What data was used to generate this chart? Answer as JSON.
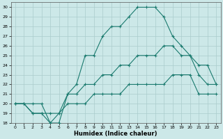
{
  "xlabel": "Humidex (Indice chaleur)",
  "bg_color": "#cce8e8",
  "line_color": "#1a7a6e",
  "grid_color": "#aacccc",
  "xlim": [
    -0.5,
    23.5
  ],
  "ylim": [
    18,
    30.5
  ],
  "yticks": [
    18,
    19,
    20,
    21,
    22,
    23,
    24,
    25,
    26,
    27,
    28,
    29,
    30
  ],
  "xticks": [
    0,
    1,
    2,
    3,
    4,
    5,
    6,
    7,
    8,
    9,
    10,
    11,
    12,
    13,
    14,
    15,
    16,
    17,
    18,
    19,
    20,
    21,
    22,
    23
  ],
  "line1_x": [
    0,
    1,
    2,
    3,
    4,
    5,
    6,
    7,
    8,
    9,
    10,
    11,
    12,
    13,
    14,
    15,
    16,
    17,
    18,
    19,
    20,
    21,
    22,
    23
  ],
  "line1_y": [
    20,
    20,
    19,
    19,
    19,
    19,
    20,
    20,
    20,
    21,
    21,
    21,
    21,
    22,
    22,
    22,
    22,
    22,
    23,
    23,
    23,
    21,
    21,
    21
  ],
  "line2_x": [
    0,
    1,
    2,
    3,
    4,
    5,
    6,
    7,
    8,
    9,
    10,
    11,
    12,
    13,
    14,
    15,
    16,
    17,
    18,
    19,
    20,
    21,
    22,
    23
  ],
  "line2_y": [
    20,
    20,
    19,
    19,
    18,
    19,
    21,
    21,
    22,
    22,
    23,
    23,
    24,
    24,
    25,
    25,
    25,
    26,
    26,
    25,
    25,
    23,
    22,
    22
  ],
  "line3_x": [
    0,
    1,
    2,
    3,
    4,
    5,
    6,
    7,
    8,
    9,
    10,
    11,
    12,
    13,
    14,
    15,
    16,
    17,
    18,
    19,
    20,
    21,
    22,
    23
  ],
  "line3_y": [
    20,
    20,
    20,
    20,
    18,
    18,
    21,
    22,
    25,
    25,
    27,
    28,
    28,
    29,
    30,
    30,
    30,
    29,
    27,
    26,
    25,
    24,
    24,
    22
  ]
}
